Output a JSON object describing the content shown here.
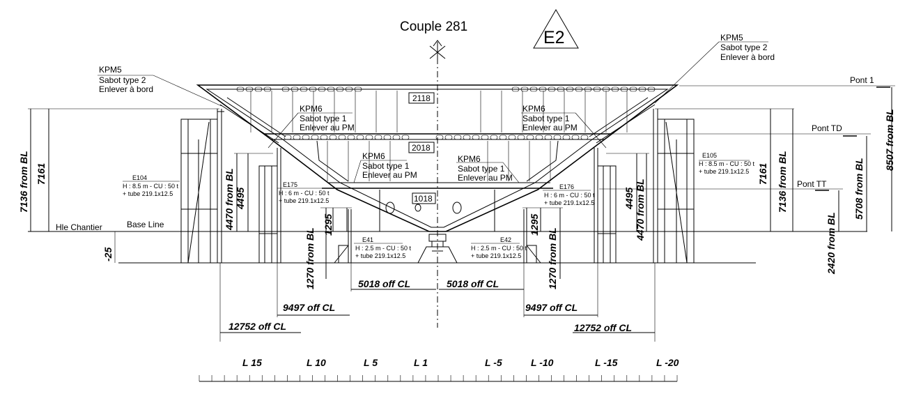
{
  "title": "Couple 281",
  "zone": "E2",
  "decks": {
    "pont1": "Pont 1",
    "pont_td": "Pont TD",
    "pont_tt": "Pont TT",
    "base_line": "Base Line",
    "hle_chantier": "Hle Chantier"
  },
  "frame_boxes": [
    "2118",
    "2018",
    "1018"
  ],
  "kpm5_left": [
    "KPM5",
    "Sabot type 2",
    "Enlever à bord"
  ],
  "kpm5_right": [
    "KPM5",
    "Sabot type 2",
    "Enlever à bord"
  ],
  "kpm6_upper_left": [
    "KPM6",
    "Sabot type 1",
    "Enlever au PM"
  ],
  "kpm6_upper_right": [
    "KPM6",
    "Sabot type 1",
    "Enlever au PM"
  ],
  "kpm6_lower_left": [
    "KPM6",
    "Sabot type 1",
    "Enlever au PM"
  ],
  "kpm6_lower_right": [
    "KPM6",
    "Sabot type 1",
    "Enlever au PM"
  ],
  "e104": [
    "E104",
    "H : 8.5 m - CU : 50 t",
    "+ tube 219.1x12.5"
  ],
  "e105": [
    "E105",
    "H : 8.5 m - CU : 50 t",
    "+ tube 219.1x12.5"
  ],
  "e175": [
    "E175",
    "H : 6 m - CU : 50 t",
    "+ tube 219.1x12.5"
  ],
  "e176": [
    "E176",
    "H : 6 m - CU : 50 t",
    "+ tube 219.1x12.5"
  ],
  "e41": [
    "E41",
    "H : 2.5 m - CU : 50 t",
    "+ tube 219.1x12.5"
  ],
  "e42": [
    "E42",
    "H : 2.5 m - CU : 50 t",
    "+ tube 219.1x12.5"
  ],
  "dims": {
    "left_7136": "7136 from BL",
    "left_7161": "7161",
    "left_m25": "-25",
    "left_4470": "4470 from BL",
    "left_4495": "4495",
    "left_1295": "1295",
    "left_1270": "1270 from BL",
    "right_7136": "7136 from BL",
    "right_7161": "7161",
    "right_4495": "4495",
    "right_4470": "4470 from BL",
    "right_1295": "1295",
    "right_1270": "1270 from BL",
    "right_8507": "8507 from BL",
    "right_5708": "5708 from BL",
    "right_2420": "2420 from BL",
    "off_5018_l": "5018 off CL",
    "off_5018_r": "5018 off CL",
    "off_9497_l": "9497 off CL",
    "off_9497_r": "9497 off CL",
    "off_12752_l": "12752 off CL",
    "off_12752_r": "12752 off CL"
  },
  "scale_labels": [
    "L 15",
    "L 10",
    "L 5",
    "L 1",
    "L -5",
    "L -10",
    "L -15",
    "L -20"
  ]
}
